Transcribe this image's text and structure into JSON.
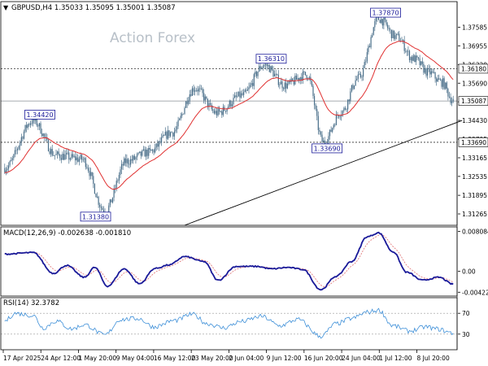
{
  "header": {
    "symbol_line": "GBPUSD,H4  1.35033 1.35095 1.35001 1.35087",
    "watermark": "Action Forex"
  },
  "chart_data": [
    {
      "type": "candlestick",
      "name": "price",
      "ylim": [
        1.3088,
        1.3845
      ],
      "y_ticks": [
        "1.37585",
        "1.36955",
        "1.36320",
        "1.35690",
        "1.35060",
        "1.34430",
        "1.33795",
        "1.33165",
        "1.32535",
        "1.31895",
        "1.31265"
      ],
      "level_labels": [
        {
          "text": "1.36180",
          "value": 1.3618
        },
        {
          "text": "1.35087",
          "value": 1.35087
        },
        {
          "text": "1.33690",
          "value": 1.3369
        }
      ],
      "dotted_levels": [
        1.3618,
        1.3369
      ],
      "current_price": 1.35087,
      "annotations": [
        {
          "text": "1.34420",
          "value": 1.3442,
          "x_index": 22
        },
        {
          "text": "1.31380",
          "value": 1.3138,
          "x_index": 78
        },
        {
          "text": "1.36310",
          "value": 1.3631,
          "x_index": 202
        },
        {
          "text": "1.33690",
          "value": 1.3369,
          "x_index": 248
        },
        {
          "text": "1.37870",
          "value": 1.3787,
          "x_index": 291
        }
      ],
      "x_labels": [
        "17 Apr 2025",
        "24 Apr 12:00",
        "1 May 20:00",
        "9 May 04:00",
        "16 May 12:00",
        "23 May 20:00",
        "2 Jun 04:00",
        "9 Jun 12:00",
        "16 Jun 20:00",
        "24 Jun 04:00",
        "1 Jul 12:00",
        "8 Jul 20:00"
      ],
      "anchors": [
        [
          0,
          1.3282
        ],
        [
          22,
          1.3442
        ],
        [
          40,
          1.3325
        ],
        [
          60,
          1.3312
        ],
        [
          78,
          1.3138
        ],
        [
          95,
          1.3305
        ],
        [
          112,
          1.3335
        ],
        [
          130,
          1.3402
        ],
        [
          148,
          1.3552
        ],
        [
          165,
          1.3468
        ],
        [
          185,
          1.3528
        ],
        [
          202,
          1.3631
        ],
        [
          218,
          1.3562
        ],
        [
          235,
          1.3598
        ],
        [
          248,
          1.3369
        ],
        [
          262,
          1.3472
        ],
        [
          275,
          1.3585
        ],
        [
          291,
          1.3787
        ],
        [
          305,
          1.3725
        ],
        [
          318,
          1.3652
        ],
        [
          330,
          1.3605
        ],
        [
          340,
          1.3572
        ],
        [
          349,
          1.35087
        ]
      ],
      "trendline": [
        [
          140,
          1.3088
        ],
        [
          356,
          1.3443
        ]
      ],
      "ma_color": "#e03030",
      "candle_color": "#4a6f8a",
      "label_color": "#1a1a99"
    },
    {
      "type": "line",
      "name": "macd",
      "title": "MACD(12,26,9) -0.002638 -0.001810",
      "ylim": [
        -0.005,
        0.009
      ],
      "y_ticks": [
        "0.008084",
        "0.00",
        "-0.004226"
      ],
      "anchors": [
        [
          0,
          0.0035
        ],
        [
          22,
          0.0038
        ],
        [
          38,
          -0.0004
        ],
        [
          48,
          0.0012
        ],
        [
          62,
          -0.0012
        ],
        [
          70,
          0.0008
        ],
        [
          80,
          -0.003
        ],
        [
          93,
          0.0005
        ],
        [
          105,
          -0.0025
        ],
        [
          117,
          0.0006
        ],
        [
          128,
          0.0013
        ],
        [
          140,
          0.003
        ],
        [
          155,
          0.002
        ],
        [
          166,
          -0.0018
        ],
        [
          180,
          0.001
        ],
        [
          196,
          0.001
        ],
        [
          208,
          0.0005
        ],
        [
          220,
          0.0008
        ],
        [
          232,
          0.0004
        ],
        [
          246,
          -0.0037
        ],
        [
          258,
          -0.001
        ],
        [
          270,
          0.002
        ],
        [
          282,
          0.007
        ],
        [
          291,
          0.0078
        ],
        [
          302,
          0.004
        ],
        [
          313,
          -0.0002
        ],
        [
          325,
          -0.0018
        ],
        [
          338,
          -0.0012
        ],
        [
          349,
          -0.0026
        ]
      ],
      "line_color": "#1a1a99",
      "signal_color": "#e07070"
    },
    {
      "type": "line",
      "name": "rsi",
      "title": "RSI(14) 32.3782",
      "ylim": [
        0,
        100
      ],
      "y_ticks": [
        "70",
        "30"
      ],
      "dotted_levels": [
        70,
        30
      ],
      "anchors": [
        [
          0,
          55
        ],
        [
          8,
          70
        ],
        [
          22,
          66
        ],
        [
          30,
          42
        ],
        [
          40,
          55
        ],
        [
          52,
          40
        ],
        [
          62,
          48
        ],
        [
          78,
          28
        ],
        [
          90,
          58
        ],
        [
          104,
          60
        ],
        [
          116,
          44
        ],
        [
          132,
          56
        ],
        [
          146,
          68
        ],
        [
          158,
          50
        ],
        [
          170,
          42
        ],
        [
          184,
          54
        ],
        [
          200,
          64
        ],
        [
          214,
          46
        ],
        [
          228,
          58
        ],
        [
          246,
          26
        ],
        [
          258,
          50
        ],
        [
          270,
          60
        ],
        [
          282,
          72
        ],
        [
          291,
          76
        ],
        [
          302,
          46
        ],
        [
          315,
          36
        ],
        [
          328,
          44
        ],
        [
          336,
          40
        ],
        [
          349,
          32
        ]
      ],
      "line_color": "#3d8fd8"
    }
  ]
}
